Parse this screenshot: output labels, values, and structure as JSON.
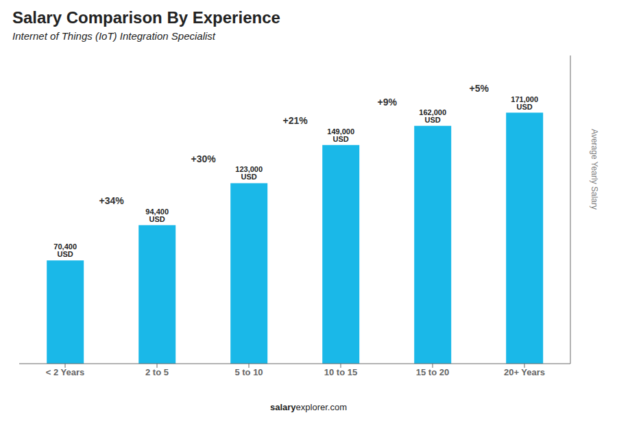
{
  "chart_data": {
    "type": "bar",
    "title": "Salary Comparison By Experience",
    "subtitle": "Internet of Things (IoT) Integration Specialist",
    "categories": [
      "< 2 Years",
      "2 to 5",
      "5 to 10",
      "10 to 15",
      "15 to 20",
      "20+ Years"
    ],
    "values": [
      70400,
      94400,
      123000,
      149000,
      162000,
      171000
    ],
    "value_labels": [
      "70,400 USD",
      "94,400 USD",
      "123,000 USD",
      "149,000 USD",
      "162,000 USD",
      "171,000 USD"
    ],
    "data_labels": true,
    "annotations": [
      "+34%",
      "+30%",
      "+21%",
      "+9%",
      "+5%"
    ],
    "ylabel": "Average Yearly Salary",
    "footer": [
      "salary",
      "explorer.com"
    ],
    "color": "#1ab8e8",
    "ylim": [
      0,
      210000
    ],
    "tick_labels": "x",
    "grid": false
  }
}
